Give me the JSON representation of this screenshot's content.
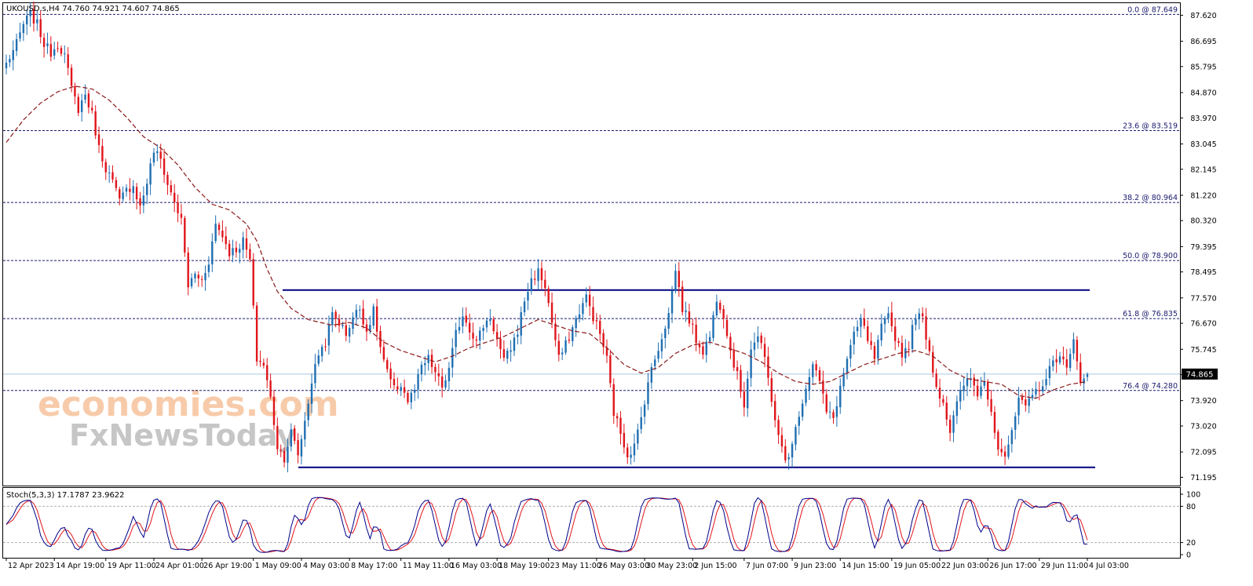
{
  "header": {
    "symbol_line": "UKOUSD.s,H4  74.760 74.921 74.607 74.865"
  },
  "watermark": {
    "line1": "economies.com",
    "line2": "FxNewsToday"
  },
  "colors": {
    "bull": "#1f6fb2",
    "bear": "#e0151b",
    "ma": "#8b1a1a",
    "fib": "#1a1a6e",
    "channel": "#000080",
    "stoch_main": "#00008b",
    "stoch_signal": "#e0151b",
    "price_line": "#a8c8e0"
  },
  "chart_data": [
    {
      "type": "candlestick",
      "symbol": "UKOUSD.s",
      "timeframe": "H4",
      "last": {
        "open": 74.76,
        "high": 74.921,
        "low": 74.607,
        "close": 74.865
      },
      "current_price_label": "74.865",
      "ylim": [
        70.9,
        88.05
      ],
      "y_ticks": [
        "87.620",
        "86.695",
        "85.795",
        "84.870",
        "83.970",
        "83.045",
        "82.145",
        "81.220",
        "80.320",
        "79.395",
        "78.495",
        "77.570",
        "76.670",
        "75.745",
        "74.845",
        "73.920",
        "73.020",
        "72.095",
        "71.195"
      ],
      "x_ticks": [
        "12 Apr 2023",
        "14 Apr 19:00",
        "19 Apr 11:00",
        "24 Apr 01:00",
        "26 Apr 19:00",
        "1 May 09:00",
        "4 May 03:00",
        "8 May 17:00",
        "11 May 11:00",
        "16 May 03:00",
        "18 May 19:00",
        "23 May 11:00",
        "26 May 03:00",
        "30 May 23:00",
        "2 Jun 15:00",
        "7 Jun 07:00",
        "9 Jun 23:00",
        "14 Jun 15:00",
        "19 Jun 05:00",
        "22 Jun 03:00",
        "26 Jun 17:00",
        "29 Jun 11:00",
        "4 Jul 03:00"
      ],
      "fibonacci": [
        {
          "label": "0.0 @ 87.649",
          "value": 87.649
        },
        {
          "label": "23.6 @ 83.519",
          "value": 83.519
        },
        {
          "label": "38.2 @ 80.964",
          "value": 80.964
        },
        {
          "label": "50.0 @ 78.900",
          "value": 78.9
        },
        {
          "label": "61.8 @ 76.835",
          "value": 76.835
        },
        {
          "label": "76.4 @ 74.280",
          "value": 74.28
        }
      ],
      "channel": {
        "upper": 77.85,
        "lower": 71.55
      },
      "price_anchors": [
        [
          0,
          85.9
        ],
        [
          3,
          86.6
        ],
        [
          5,
          87.3
        ],
        [
          7,
          87.65
        ],
        [
          9,
          87.3
        ],
        [
          11,
          86.6
        ],
        [
          13,
          86.3
        ],
        [
          15,
          86.6
        ],
        [
          17,
          86.2
        ],
        [
          19,
          85.0
        ],
        [
          21,
          84.3
        ],
        [
          23,
          84.8
        ],
        [
          25,
          84.1
        ],
        [
          27,
          82.9
        ],
        [
          29,
          82.2
        ],
        [
          31,
          81.7
        ],
        [
          33,
          81.0
        ],
        [
          35,
          81.4
        ],
        [
          37,
          81.6
        ],
        [
          39,
          80.8
        ],
        [
          41,
          81.7
        ],
        [
          43,
          82.8
        ],
        [
          45,
          82.5
        ],
        [
          47,
          81.6
        ],
        [
          49,
          81.0
        ],
        [
          51,
          80.3
        ],
        [
          53,
          78.0
        ],
        [
          55,
          78.4
        ],
        [
          57,
          78.2
        ],
        [
          59,
          78.9
        ],
        [
          61,
          80.2
        ],
        [
          63,
          79.8
        ],
        [
          65,
          79.2
        ],
        [
          67,
          79.3
        ],
        [
          69,
          79.6
        ],
        [
          71,
          78.9
        ],
        [
          73,
          75.4
        ],
        [
          75,
          75.2
        ],
        [
          77,
          74.0
        ],
        [
          79,
          72.3
        ],
        [
          81,
          71.9
        ],
        [
          83,
          72.8
        ],
        [
          85,
          72.0
        ],
        [
          87,
          73.2
        ],
        [
          89,
          74.6
        ],
        [
          91,
          75.6
        ],
        [
          93,
          76.0
        ],
        [
          95,
          77.0
        ],
        [
          97,
          76.7
        ],
        [
          99,
          76.3
        ],
        [
          101,
          76.9
        ],
        [
          103,
          77.2
        ],
        [
          105,
          76.4
        ],
        [
          107,
          77.1
        ],
        [
          109,
          75.8
        ],
        [
          111,
          74.9
        ],
        [
          113,
          74.3
        ],
        [
          115,
          74.5
        ],
        [
          117,
          73.9
        ],
        [
          119,
          74.3
        ],
        [
          121,
          75.1
        ],
        [
          123,
          75.4
        ],
        [
          125,
          74.9
        ],
        [
          127,
          74.4
        ],
        [
          129,
          75.0
        ],
        [
          131,
          76.3
        ],
        [
          133,
          77.0
        ],
        [
          135,
          76.5
        ],
        [
          137,
          76.0
        ],
        [
          139,
          76.6
        ],
        [
          141,
          76.9
        ],
        [
          143,
          76.1
        ],
        [
          145,
          75.3
        ],
        [
          147,
          75.8
        ],
        [
          149,
          76.4
        ],
        [
          151,
          77.5
        ],
        [
          153,
          78.2
        ],
        [
          155,
          78.5
        ],
        [
          157,
          78.0
        ],
        [
          159,
          76.7
        ],
        [
          161,
          75.4
        ],
        [
          163,
          75.9
        ],
        [
          165,
          76.5
        ],
        [
          167,
          77.1
        ],
        [
          169,
          77.6
        ],
        [
          171,
          76.9
        ],
        [
          173,
          76.3
        ],
        [
          175,
          75.4
        ],
        [
          177,
          73.5
        ],
        [
          179,
          72.8
        ],
        [
          181,
          72.0
        ],
        [
          183,
          72.3
        ],
        [
          185,
          73.3
        ],
        [
          187,
          74.6
        ],
        [
          189,
          75.4
        ],
        [
          191,
          76.2
        ],
        [
          193,
          77.0
        ],
        [
          195,
          78.6
        ],
        [
          197,
          77.2
        ],
        [
          199,
          76.8
        ],
        [
          201,
          76.1
        ],
        [
          203,
          75.7
        ],
        [
          205,
          76.2
        ],
        [
          207,
          77.6
        ],
        [
          209,
          77.0
        ],
        [
          211,
          75.7
        ],
        [
          213,
          74.8
        ],
        [
          215,
          73.8
        ],
        [
          217,
          75.8
        ],
        [
          219,
          76.2
        ],
        [
          221,
          75.4
        ],
        [
          223,
          74.0
        ],
        [
          225,
          72.6
        ],
        [
          227,
          71.8
        ],
        [
          229,
          72.3
        ],
        [
          231,
          73.5
        ],
        [
          233,
          74.4
        ],
        [
          235,
          75.3
        ],
        [
          237,
          74.6
        ],
        [
          239,
          73.5
        ],
        [
          241,
          73.3
        ],
        [
          243,
          74.4
        ],
        [
          245,
          75.4
        ],
        [
          247,
          76.2
        ],
        [
          249,
          76.8
        ],
        [
          251,
          76.1
        ],
        [
          253,
          75.4
        ],
        [
          255,
          76.5
        ],
        [
          257,
          76.9
        ],
        [
          259,
          76.2
        ],
        [
          261,
          75.6
        ],
        [
          263,
          75.9
        ],
        [
          265,
          77.0
        ],
        [
          267,
          76.8
        ],
        [
          269,
          75.7
        ],
        [
          271,
          74.4
        ],
        [
          273,
          73.9
        ],
        [
          275,
          72.8
        ],
        [
          277,
          73.8
        ],
        [
          279,
          74.5
        ],
        [
          281,
          74.7
        ],
        [
          283,
          74.2
        ],
        [
          285,
          74.6
        ],
        [
          287,
          73.6
        ],
        [
          289,
          72.3
        ],
        [
          291,
          72.0
        ],
        [
          293,
          72.7
        ],
        [
          295,
          74.0
        ],
        [
          297,
          73.6
        ],
        [
          299,
          74.1
        ],
        [
          301,
          74.4
        ],
        [
          303,
          74.7
        ],
        [
          305,
          75.3
        ],
        [
          307,
          75.6
        ],
        [
          309,
          75.0
        ],
        [
          311,
          76.0
        ],
        [
          313,
          74.7
        ],
        [
          315,
          74.9
        ]
      ],
      "moving_average_anchors": [
        [
          0,
          83.1
        ],
        [
          5,
          83.9
        ],
        [
          10,
          84.5
        ],
        [
          15,
          84.9
        ],
        [
          20,
          85.1
        ],
        [
          25,
          85.0
        ],
        [
          30,
          84.6
        ],
        [
          35,
          84.0
        ],
        [
          40,
          83.3
        ],
        [
          45,
          82.9
        ],
        [
          50,
          82.3
        ],
        [
          55,
          81.5
        ],
        [
          60,
          80.9
        ],
        [
          65,
          80.7
        ],
        [
          70,
          80.2
        ],
        [
          73,
          79.6
        ],
        [
          76,
          78.6
        ],
        [
          79,
          77.8
        ],
        [
          83,
          77.2
        ],
        [
          88,
          76.8
        ],
        [
          95,
          76.6
        ],
        [
          100,
          76.7
        ],
        [
          105,
          76.5
        ],
        [
          110,
          76.0
        ],
        [
          115,
          75.7
        ],
        [
          120,
          75.5
        ],
        [
          125,
          75.3
        ],
        [
          130,
          75.5
        ],
        [
          135,
          75.8
        ],
        [
          140,
          76.0
        ],
        [
          145,
          76.2
        ],
        [
          150,
          76.5
        ],
        [
          155,
          76.8
        ],
        [
          160,
          76.6
        ],
        [
          165,
          76.4
        ],
        [
          170,
          76.3
        ],
        [
          175,
          75.8
        ],
        [
          180,
          75.2
        ],
        [
          185,
          74.9
        ],
        [
          190,
          75.1
        ],
        [
          195,
          75.6
        ],
        [
          200,
          75.9
        ],
        [
          205,
          76.0
        ],
        [
          210,
          75.8
        ],
        [
          215,
          75.6
        ],
        [
          220,
          75.3
        ],
        [
          225,
          74.9
        ],
        [
          230,
          74.6
        ],
        [
          235,
          74.5
        ],
        [
          240,
          74.6
        ],
        [
          245,
          74.9
        ],
        [
          250,
          75.2
        ],
        [
          255,
          75.4
        ],
        [
          260,
          75.6
        ],
        [
          265,
          75.7
        ],
        [
          270,
          75.5
        ],
        [
          275,
          75.0
        ],
        [
          280,
          74.7
        ],
        [
          285,
          74.6
        ],
        [
          290,
          74.5
        ],
        [
          295,
          74.1
        ],
        [
          300,
          74.0
        ],
        [
          305,
          74.3
        ],
        [
          310,
          74.5
        ],
        [
          315,
          74.6
        ]
      ]
    },
    {
      "type": "line",
      "indicator": "Stoch(5,3,3)",
      "main": 17.1787,
      "signal": 23.9622,
      "header_label": "Stoch(5,3,3) 17.1787 23.9622",
      "ylim": [
        0,
        100
      ],
      "y_ticks": [
        "100",
        "80",
        "20",
        "0"
      ],
      "levels": [
        80,
        20
      ]
    }
  ]
}
